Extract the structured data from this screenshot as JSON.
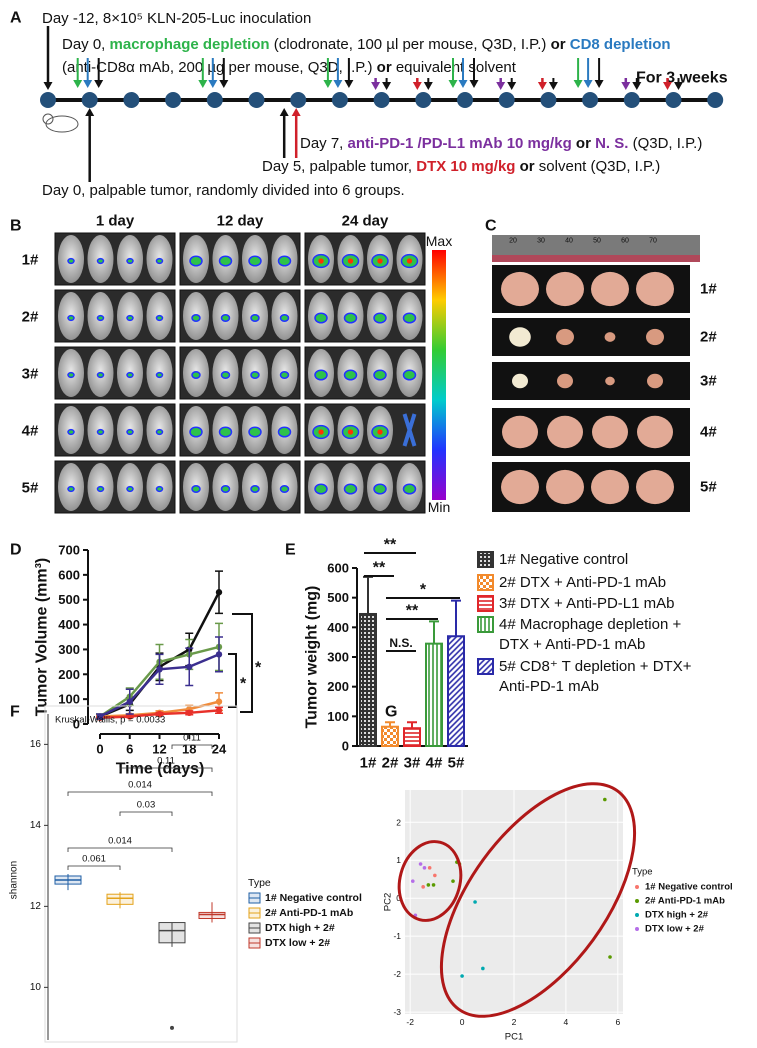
{
  "panel_a": {
    "label": "A",
    "lines": [
      [
        {
          "text": "Day -12, 8×10⁵ KLN-205-Luc inoculation"
        }
      ],
      [
        {
          "text": "Day 0, "
        },
        {
          "text": "macrophage depletion",
          "color": "#2db34a",
          "bold": true
        },
        {
          "text": " (clodronate, 100 µl per mouse, Q3D, I.P.) "
        },
        {
          "text": "or ",
          "bold": true
        },
        {
          "text": "CD8 depletion",
          "color": "#2a7ac0",
          "bold": true
        }
      ],
      [
        {
          "text": "(anti-CD8α mAb, 200 µg per mouse, Q3D, I.P.) "
        },
        {
          "text": "or",
          "bold": true
        },
        {
          "text": " equivalent solvent"
        }
      ],
      [
        {
          "text": "Day 7, "
        },
        {
          "text": "anti-PD-1 /PD-L1 mAb 10 mg/kg",
          "color": "#7b2f9e",
          "bold": true
        },
        {
          "text": " or ",
          "bold": true
        },
        {
          "text": "N. S.",
          "color": "#7b2f9e",
          "bold": true
        },
        {
          "text": " (Q3D, I.P.)"
        }
      ],
      [
        {
          "text": "Day 5, palpable tumor, "
        },
        {
          "text": "DTX 10 mg/kg",
          "color": "#d0202a",
          "bold": true
        },
        {
          "text": " or",
          "bold": true
        },
        {
          "text": " solvent (Q3D, I.P.)"
        }
      ],
      [
        {
          "text": "Day 0, palpable tumor, randomly divided into 6 groups."
        }
      ]
    ],
    "duration": "For 3 weeks"
  },
  "panel_b": {
    "label": "B",
    "columns": [
      "1 day",
      "12 day",
      "24 day"
    ],
    "rows": [
      "1#",
      "2#",
      "3#",
      "4#",
      "5#"
    ],
    "scale_max": "Max",
    "scale_min": "Min"
  },
  "panel_c": {
    "label": "C",
    "ruler": [
      "20",
      "30",
      "40",
      "50",
      "60",
      "70"
    ],
    "rows": [
      "1#",
      "2#",
      "3#",
      "4#",
      "5#"
    ]
  },
  "chart_data": [
    {
      "type": "line",
      "label": "D",
      "y_label": "Tumor Volume (mm³)",
      "x_label": "Time (days)",
      "x": [
        0,
        6,
        12,
        18,
        24
      ],
      "xlim": [
        0,
        24
      ],
      "xticks": [
        0,
        6,
        12,
        18,
        24
      ],
      "ylim": [
        0,
        700
      ],
      "yticks": [
        0,
        100,
        200,
        300,
        400,
        500,
        600,
        700
      ],
      "series": [
        {
          "color": "#111111",
          "values": [
            30,
            80,
            230,
            300,
            530
          ],
          "errors": [
            8,
            25,
            55,
            65,
            85
          ]
        },
        {
          "color": "#f08c3c",
          "values": [
            30,
            35,
            45,
            60,
            90
          ],
          "errors": [
            5,
            5,
            8,
            15,
            35
          ]
        },
        {
          "color": "#e8312a",
          "values": [
            25,
            30,
            40,
            45,
            55
          ],
          "errors": [
            3,
            4,
            6,
            8,
            12
          ]
        },
        {
          "color": "#6a9a4a",
          "values": [
            30,
            110,
            250,
            280,
            310
          ],
          "errors": [
            10,
            35,
            70,
            60,
            95
          ]
        },
        {
          "color": "#3b2f8f",
          "values": [
            30,
            90,
            220,
            230,
            280
          ],
          "errors": [
            10,
            50,
            60,
            75,
            70
          ]
        }
      ],
      "annotations": [
        "*",
        "*"
      ]
    },
    {
      "type": "bar",
      "label": "E",
      "y_label": "Tumor weight (mg)",
      "categories": [
        "1#",
        "2#",
        "3#",
        "4#",
        "5#"
      ],
      "values": [
        445,
        65,
        60,
        345,
        370
      ],
      "errors": [
        125,
        15,
        20,
        75,
        120
      ],
      "colors": [
        "#333333",
        "#f28a2c",
        "#e0262a",
        "#3a9a3a",
        "#2a2aa8"
      ],
      "patterns": [
        "crosshatch",
        "checker",
        "horizontal",
        "vertical",
        "diagonal"
      ],
      "legend": [
        "1# Negative control",
        "2# DTX + Anti-PD-1 mAb",
        "3# DTX + Anti-PD-L1 mAb",
        "4# Macrophage depletion + DTX  +  Anti-PD-1 mAb",
        "5# CD8⁺ T depletion  + DTX+ Anti-PD-1 mAb"
      ],
      "ylim": [
        0,
        600
      ],
      "yticks": [
        0,
        100,
        200,
        300,
        400,
        500,
        600
      ],
      "annotations": [
        "**",
        "**",
        "*",
        "**",
        "N.S."
      ]
    },
    {
      "type": "box",
      "label": "F",
      "y_label": "shannon",
      "note": "Kruskal-Wallis, p = 0.0033",
      "legend_title": "Type",
      "ylim": [
        8.7,
        16.75
      ],
      "yticks": [
        10,
        12,
        14,
        16
      ],
      "series": [
        {
          "name": "1# Negative control",
          "color": "#1f5fa5",
          "min": 12.4,
          "q1": 12.55,
          "median": 12.65,
          "q3": 12.75,
          "max": 12.8,
          "outliers": []
        },
        {
          "name": "2# Anti-PD-1 mAb",
          "color": "#e3a21a",
          "min": 11.95,
          "q1": 12.05,
          "median": 12.2,
          "q3": 12.3,
          "max": 12.35,
          "outliers": []
        },
        {
          "name": "DTX high + 2#",
          "color": "#444444",
          "min": 11.0,
          "q1": 11.1,
          "median": 11.4,
          "q3": 11.6,
          "max": 11.6,
          "outliers": [
            9.0
          ]
        },
        {
          "name": "DTX low + 2#",
          "color": "#c0392b",
          "min": 11.6,
          "q1": 11.7,
          "median": 11.8,
          "q3": 11.85,
          "max": 12.1,
          "outliers": []
        }
      ],
      "comparisons": [
        "0.11",
        "0.11",
        "0.014",
        "0.03",
        "0.014",
        "0.061"
      ]
    },
    {
      "type": "scatter",
      "label": "G",
      "x_label": "PC1",
      "y_label": "PC2",
      "legend_title": "Type",
      "xlim": [
        -2.2,
        6.2
      ],
      "xticks": [
        -2,
        0,
        2,
        4,
        6
      ],
      "ylim": [
        -3.05,
        2.85
      ],
      "yticks": [
        -3,
        -2,
        -1,
        0,
        1,
        2
      ],
      "grid": true,
      "series": [
        {
          "name": "1# Negative control",
          "color": "#f8766d",
          "x": [
            -1.25,
            -1.05,
            -1.5
          ],
          "y": [
            0.8,
            0.6,
            0.3
          ]
        },
        {
          "name": "2# Anti-PD-1 mAb",
          "color": "#5a9a00",
          "x": [
            -1.3,
            -0.2,
            -0.1,
            -0.35,
            -1.1,
            5.5,
            5.7
          ],
          "y": [
            0.35,
            0.95,
            0.9,
            0.45,
            0.35,
            2.6,
            -1.55
          ]
        },
        {
          "name": "DTX high + 2#",
          "color": "#00a9b0",
          "x": [
            0.5,
            0.0,
            0.8
          ],
          "y": [
            -0.1,
            -2.05,
            -1.85
          ]
        },
        {
          "name": "DTX low + 2#",
          "color": "#b56ee8",
          "x": [
            -1.6,
            -1.45,
            -1.9,
            -1.8
          ],
          "y": [
            0.9,
            0.8,
            0.45,
            -0.45
          ]
        }
      ]
    }
  ]
}
